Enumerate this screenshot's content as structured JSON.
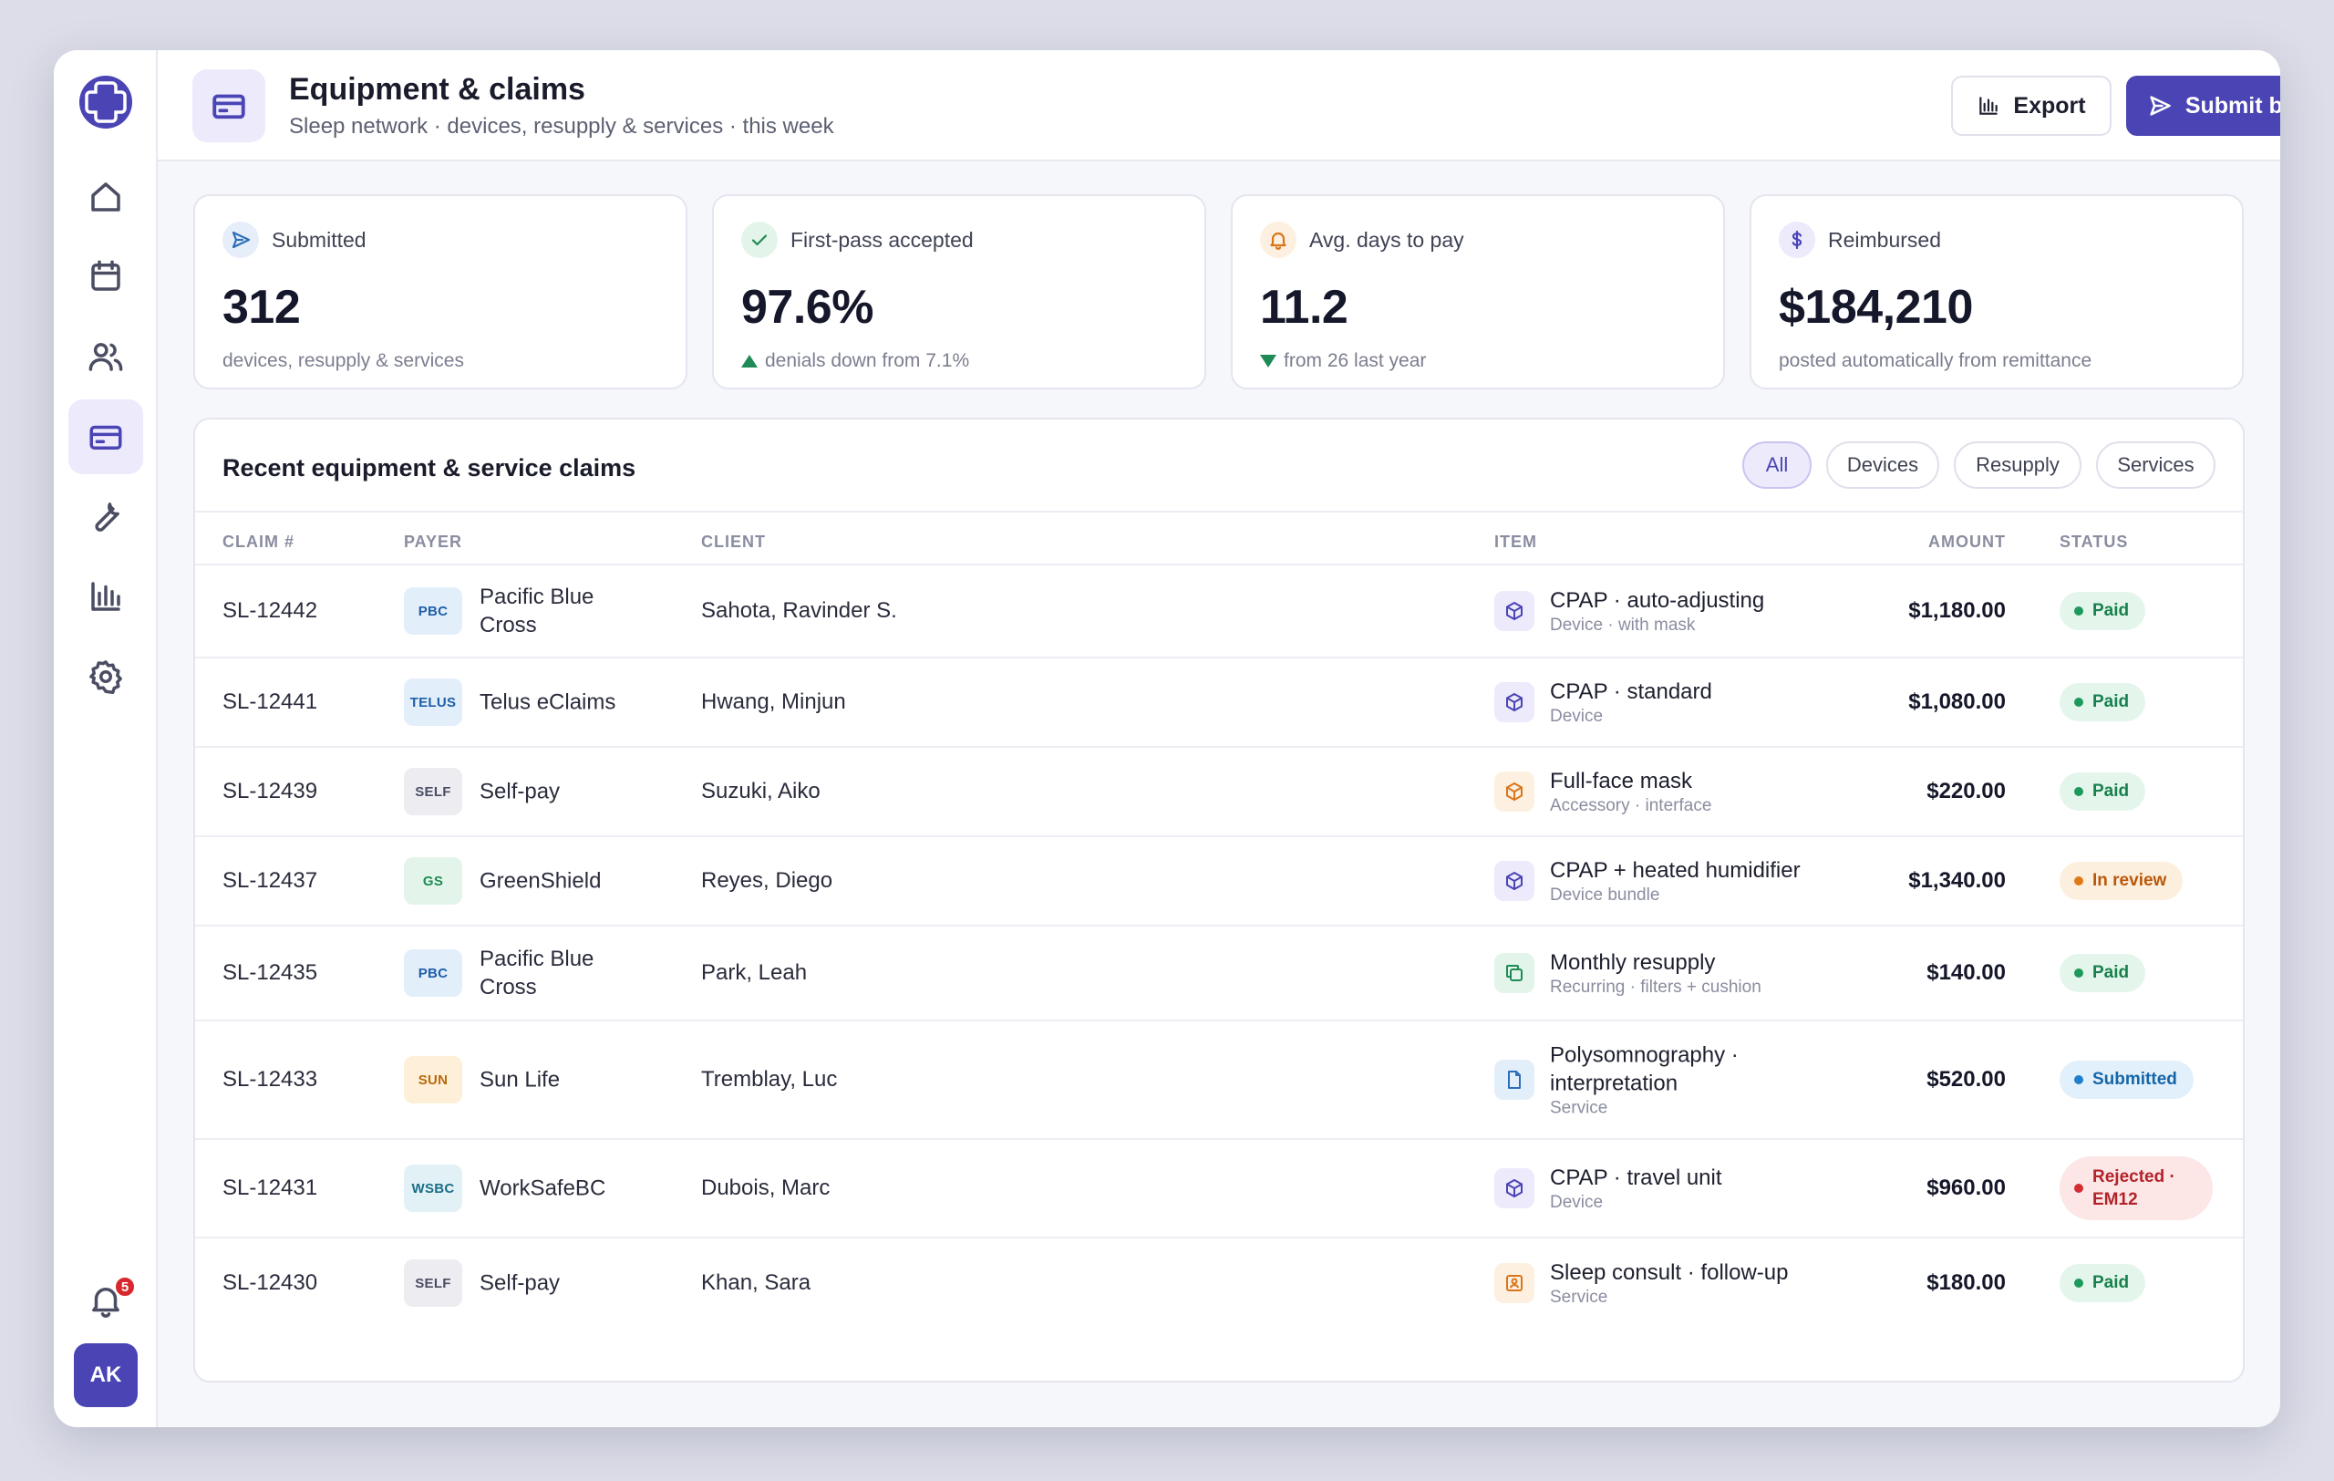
{
  "header": {
    "title": "Equipment & claims",
    "subtitle": "Sleep network · devices, resupply & services · this week",
    "export_label": "Export",
    "submit_label": "Submit batch"
  },
  "sidebar": {
    "items": [
      {
        "name": "home-icon"
      },
      {
        "name": "calendar-icon"
      },
      {
        "name": "users-icon"
      },
      {
        "name": "card-icon",
        "active": true
      },
      {
        "name": "wrench-icon"
      },
      {
        "name": "bar-chart-icon"
      },
      {
        "name": "gear-icon"
      }
    ],
    "notification_count": "5",
    "avatar_initials": "AK"
  },
  "kpis": [
    {
      "label": "Submitted",
      "value": "312",
      "note": "devices, resupply & services",
      "icon": "send-icon"
    },
    {
      "label": "First-pass accepted",
      "value": "97.6%",
      "note": "denials down from 7.1%",
      "icon": "check-icon",
      "trend": "up"
    },
    {
      "label": "Avg. days to pay",
      "value": "11.2",
      "note": "from 26 last year",
      "icon": "bell-icon",
      "trend": "down"
    },
    {
      "label": "Reimbursed",
      "value": "$184,210",
      "note": "posted automatically from remittance",
      "icon": "dollar-icon"
    }
  ],
  "table": {
    "title": "Recent equipment & service claims",
    "filters": [
      "All",
      "Devices",
      "Resupply",
      "Services"
    ],
    "active_filter": "All",
    "columns": {
      "claim": "CLAIM #",
      "payer": "PAYER",
      "client": "CLIENT",
      "item": "ITEM",
      "amount": "AMOUNT",
      "status": "STATUS"
    },
    "rows": [
      {
        "claim": "SL-12442",
        "payer_badge": "PBC",
        "payer": "Pacific Blue Cross",
        "client": "Sahota, Ravinder S.",
        "item": "CPAP · auto-adjusting",
        "item_sub": "Device · with mask",
        "amount": "$1,180.00",
        "status": "Paid"
      },
      {
        "claim": "SL-12441",
        "payer_badge": "TELUS",
        "payer": "Telus eClaims",
        "client": "Hwang, Minjun",
        "item": "CPAP · standard",
        "item_sub": "Device",
        "amount": "$1,080.00",
        "status": "Paid"
      },
      {
        "claim": "SL-12439",
        "payer_badge": "SELF",
        "payer": "Self-pay",
        "client": "Suzuki, Aiko",
        "item": "Full-face mask",
        "item_sub": "Accessory · interface",
        "amount": "$220.00",
        "status": "Paid"
      },
      {
        "claim": "SL-12437",
        "payer_badge": "GS",
        "payer": "GreenShield",
        "client": "Reyes, Diego",
        "item": "CPAP + heated humidifier",
        "item_sub": "Device bundle",
        "amount": "$1,340.00",
        "status": "In review"
      },
      {
        "claim": "SL-12435",
        "payer_badge": "PBC",
        "payer": "Pacific Blue Cross",
        "client": "Park, Leah",
        "item": "Monthly resupply",
        "item_sub": "Recurring · filters + cushion",
        "amount": "$140.00",
        "status": "Paid"
      },
      {
        "claim": "SL-12433",
        "payer_badge": "SUN",
        "payer": "Sun Life",
        "client": "Tremblay, Luc",
        "item": "Polysomnography · interpretation",
        "item_sub": "Service",
        "amount": "$520.00",
        "status": "Submitted"
      },
      {
        "claim": "SL-12431",
        "payer_badge": "WSBC",
        "payer": "WorkSafeBC",
        "client": "Dubois, Marc",
        "item": "CPAP · travel unit",
        "item_sub": "Device",
        "amount": "$960.00",
        "status": "Rejected · EM12"
      },
      {
        "claim": "SL-12430",
        "payer_badge": "SELF",
        "payer": "Self-pay",
        "client": "Khan, Sara",
        "item": "Sleep consult · follow-up",
        "item_sub": "Service",
        "amount": "$180.00",
        "status": "Paid"
      }
    ]
  },
  "colors": {
    "accent": "#4a44b5",
    "paid": "#17804d",
    "review": "#b9580c",
    "submitted": "#1666a8",
    "rejected": "#b3232a"
  }
}
